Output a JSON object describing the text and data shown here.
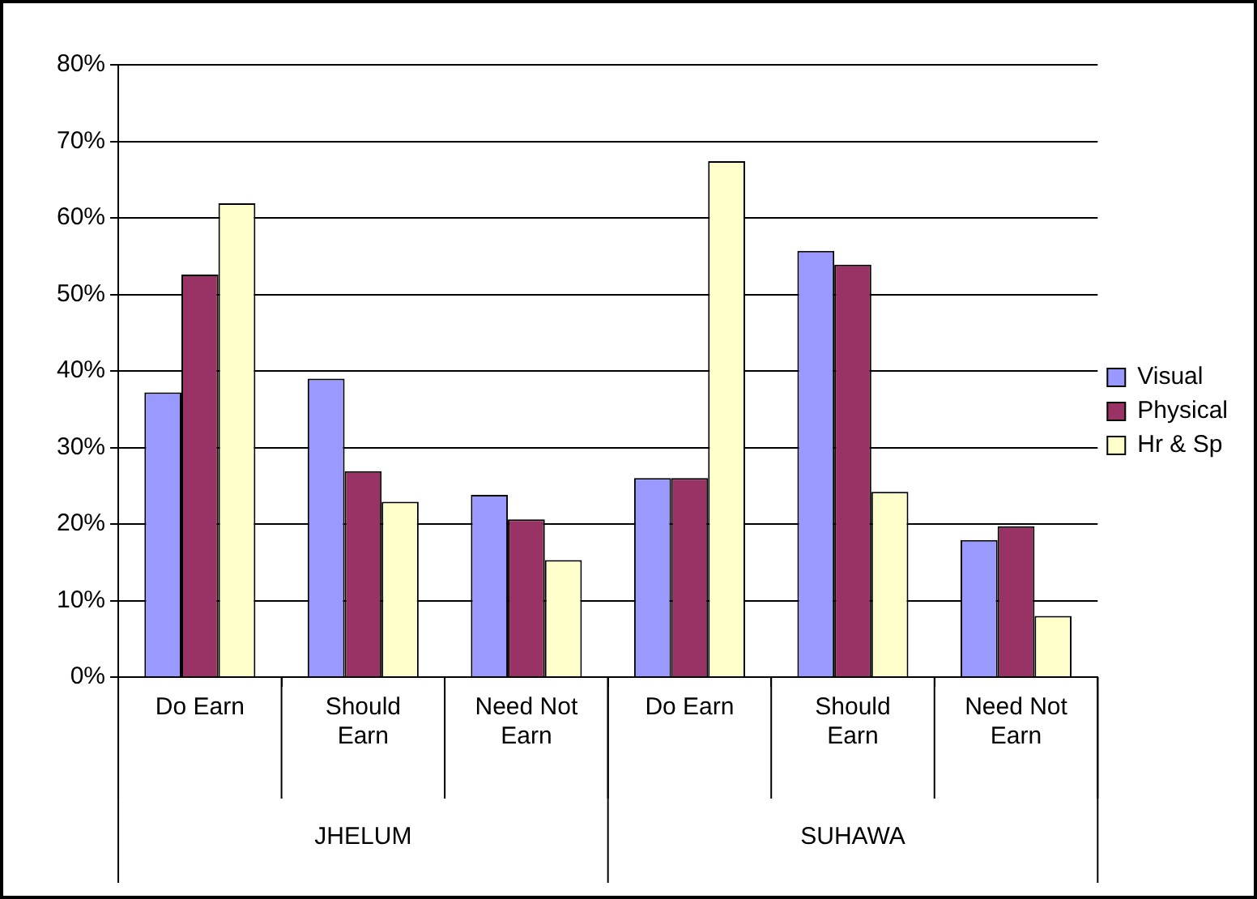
{
  "chart_data": {
    "type": "bar",
    "categories": [
      "Do Earn",
      "Should Earn",
      "Need Not Earn",
      "Do Earn",
      "Should Earn",
      "Need Not Earn"
    ],
    "series": [
      {
        "name": "Visual",
        "color": "#9999ff",
        "values": [
          37.2,
          39.0,
          23.8,
          26.0,
          55.7,
          17.9
        ]
      },
      {
        "name": "Physical",
        "color": "#993366",
        "values": [
          52.6,
          26.9,
          20.6,
          26.0,
          53.9,
          19.7
        ]
      },
      {
        "name": "Hr & Sp",
        "color": "#ffffcc",
        "values": [
          61.9,
          22.9,
          15.3,
          67.4,
          24.2,
          8.0
        ]
      }
    ],
    "ylim": [
      0,
      80
    ],
    "yticks": [
      {
        "value": 0,
        "label": "0%"
      },
      {
        "value": 10,
        "label": "10%"
      },
      {
        "value": 20,
        "label": "20%"
      },
      {
        "value": 30,
        "label": "30%"
      },
      {
        "value": 40,
        "label": "40%"
      },
      {
        "value": 50,
        "label": "50%"
      },
      {
        "value": 60,
        "label": "60%"
      },
      {
        "value": 70,
        "label": "70%"
      },
      {
        "value": 80,
        "label": "80%"
      }
    ],
    "grid": "y",
    "legend": "right",
    "annotations": [
      "JHELUM",
      "SUHAWA"
    ]
  }
}
